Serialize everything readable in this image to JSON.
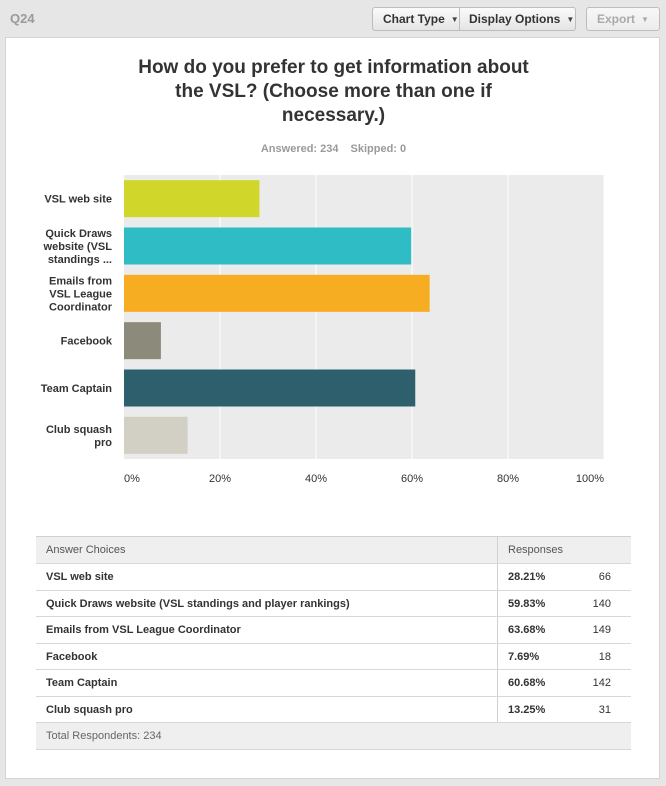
{
  "question_label": "Q24",
  "toolbar": {
    "chart_type": "Chart Type",
    "display_options": "Display Options",
    "export": "Export"
  },
  "title_lines": [
    "How do you prefer to get information about",
    "the VSL? (Choose more than one if",
    "necessary.)"
  ],
  "answered": "Answered: 234",
  "skipped": "Skipped: 0",
  "chart_data": {
    "type": "bar",
    "orientation": "horizontal",
    "categories": [
      [
        "VSL web site"
      ],
      [
        "Quick Draws",
        "website (VSL",
        "standings ..."
      ],
      [
        "Emails from",
        "VSL League",
        "Coordinator"
      ],
      [
        "Facebook"
      ],
      [
        "Team Captain"
      ],
      [
        "Club squash",
        "pro"
      ]
    ],
    "values": [
      28.21,
      59.83,
      63.68,
      7.69,
      60.68,
      13.25
    ],
    "colors": [
      "#d1d62b",
      "#2fbcc4",
      "#f6ad21",
      "#8c8b7b",
      "#2e5f6d",
      "#d2d0c4"
    ],
    "xlim": [
      0,
      100
    ],
    "xticks": [
      "0%",
      "20%",
      "40%",
      "60%",
      "80%",
      "100%"
    ],
    "plot_background": "#ebebeb",
    "grid": true
  },
  "table": {
    "headers": {
      "choice": "Answer Choices",
      "responses": "Responses"
    },
    "rows": [
      {
        "choice": "VSL web site",
        "percent": "28.21%",
        "count": "66"
      },
      {
        "choice": "Quick Draws website (VSL standings and player rankings)",
        "percent": "59.83%",
        "count": "140"
      },
      {
        "choice": "Emails from VSL League Coordinator",
        "percent": "63.68%",
        "count": "149"
      },
      {
        "choice": "Facebook",
        "percent": "7.69%",
        "count": "18"
      },
      {
        "choice": "Team Captain",
        "percent": "60.68%",
        "count": "142"
      },
      {
        "choice": "Club squash pro",
        "percent": "13.25%",
        "count": "31"
      }
    ],
    "footer": "Total Respondents: 234"
  }
}
